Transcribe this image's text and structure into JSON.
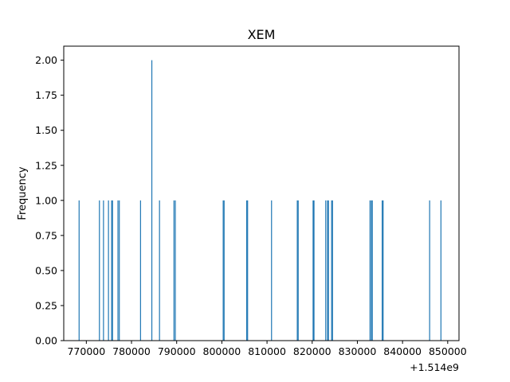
{
  "chart_data": {
    "type": "bar",
    "title": "XEM",
    "xlabel": "",
    "ylabel": "Frequency",
    "x_offset_label": "+1.514e9",
    "xlim": [
      765000,
      852500
    ],
    "ylim": [
      0,
      2.1
    ],
    "x_ticks": [
      770000,
      780000,
      790000,
      800000,
      810000,
      820000,
      830000,
      840000,
      850000
    ],
    "x_tick_labels": [
      "770000",
      "780000",
      "790000",
      "800000",
      "810000",
      "820000",
      "830000",
      "840000",
      "850000"
    ],
    "y_ticks": [
      0,
      0.25,
      0.5,
      0.75,
      1.0,
      1.25,
      1.5,
      1.75,
      2.0
    ],
    "y_tick_labels": [
      "0.00",
      "0.25",
      "0.50",
      "0.75",
      "1.00",
      "1.25",
      "1.50",
      "1.75",
      "2.00"
    ],
    "bar_width": 130,
    "x": [
      768400,
      772900,
      773800,
      774900,
      775600,
      775800,
      777000,
      777300,
      782000,
      784500,
      786200,
      789400,
      789700,
      800300,
      800500,
      805500,
      805700,
      811000,
      816700,
      816900,
      820200,
      820400,
      823000,
      823400,
      823600,
      824300,
      824500,
      832800,
      833100,
      833300,
      835500,
      835700,
      846000,
      848500
    ],
    "values": [
      1,
      1,
      1,
      1,
      1,
      1,
      1,
      1,
      1,
      2,
      1,
      1,
      1,
      1,
      1,
      1,
      1,
      1,
      1,
      1,
      1,
      1,
      1,
      1,
      1,
      1,
      1,
      1,
      1,
      1,
      1,
      1,
      1,
      1
    ],
    "grid": false,
    "bar_color": "#1f77b4"
  }
}
